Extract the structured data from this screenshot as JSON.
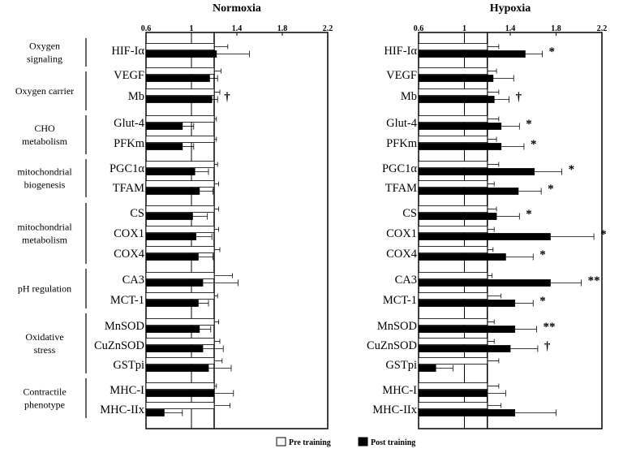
{
  "chart_data": {
    "type": "bar",
    "orientation": "horizontal",
    "xlim": [
      0.6,
      2.2
    ],
    "xticks": [
      "0.6",
      "1",
      "1.4",
      "1.8",
      "2.2"
    ],
    "reference_lines": [
      1.0,
      1.2
    ],
    "legend": {
      "placement": "bottom-center",
      "entries": [
        "Pre training",
        "Post training"
      ]
    },
    "series_colors": {
      "Pre training": "#ffffff",
      "Post training": "#000000"
    },
    "categories": [
      "HIF-Iα",
      "VEGF",
      "Mb",
      "Glut-4",
      "PFKm",
      "PGC1α",
      "TFAM",
      "CS",
      "COX1",
      "COX4",
      "CA3",
      "MCT-1",
      "MnSOD",
      "CuZnSOD",
      "GSTpi",
      "MHC-I",
      "MHC-IIx"
    ],
    "groups": [
      {
        "label": [
          "Oxygen",
          "signaling"
        ],
        "genes": [
          "HIF-Iα"
        ]
      },
      {
        "label": [
          "Oxygen carrier"
        ],
        "genes": [
          "VEGF",
          "Mb"
        ]
      },
      {
        "label": [
          "CHO",
          "metabolism"
        ],
        "genes": [
          "Glut-4",
          "PFKm"
        ]
      },
      {
        "label": [
          "mitochondrial",
          "biogenesis"
        ],
        "genes": [
          "PGC1α",
          "TFAM"
        ]
      },
      {
        "label": [
          "mitochondrial",
          "metabolism"
        ],
        "genes": [
          "CS",
          "COX1",
          "COX4"
        ]
      },
      {
        "label": [
          "pH regulation"
        ],
        "genes": [
          "CA3",
          "MCT-1"
        ]
      },
      {
        "label": [
          "Oxidative",
          "stress"
        ],
        "genes": [
          "MnSOD",
          "CuZnSOD",
          "GSTpi"
        ]
      },
      {
        "label": [
          "Contractile",
          "phenotype"
        ],
        "genes": [
          "MHC-I",
          "MHC-IIx"
        ]
      }
    ],
    "panels": [
      {
        "title": "Normoxia",
        "series": [
          {
            "name": "Pre training",
            "values": [
              1.2,
              1.2,
              1.2,
              1.2,
              1.2,
              1.2,
              1.2,
              1.2,
              1.2,
              1.2,
              1.2,
              1.2,
              1.2,
              1.2,
              1.2,
              1.2,
              1.2
            ],
            "errors": [
              0.12,
              0.06,
              0.05,
              0.02,
              0.02,
              0.03,
              0.04,
              0.04,
              0.04,
              0.05,
              0.16,
              0.03,
              0.04,
              0.05,
              0.07,
              0.02,
              0.14
            ]
          },
          {
            "name": "Post training",
            "values": [
              1.22,
              1.16,
              1.18,
              0.92,
              0.92,
              1.03,
              1.07,
              1.01,
              1.04,
              1.06,
              1.1,
              1.06,
              1.07,
              1.1,
              1.15,
              1.2,
              0.76
            ],
            "errors": [
              0.29,
              0.07,
              0.05,
              0.1,
              0.1,
              0.12,
              0.12,
              0.13,
              0.14,
              0.13,
              0.31,
              0.09,
              0.1,
              0.18,
              0.2,
              0.17,
              0.16
            ]
          }
        ],
        "annotations": [
          "",
          "",
          "†",
          "",
          "",
          "",
          "",
          "",
          "",
          "",
          "",
          "",
          "",
          "",
          "",
          "",
          ""
        ]
      },
      {
        "title": "Hypoxia",
        "series": [
          {
            "name": "Pre training",
            "values": [
              1.2,
              1.2,
              1.2,
              1.2,
              1.2,
              1.2,
              1.2,
              1.2,
              1.2,
              1.2,
              1.2,
              1.2,
              1.2,
              1.2,
              1.2,
              1.2,
              1.2
            ],
            "errors": [
              0.1,
              0.08,
              0.1,
              0.1,
              0.08,
              0.1,
              0.06,
              0.08,
              0.06,
              0.05,
              0.04,
              0.12,
              0.06,
              0.06,
              0.1,
              0.1,
              0.12
            ]
          },
          {
            "name": "Post training",
            "values": [
              1.53,
              1.25,
              1.26,
              1.32,
              1.32,
              1.61,
              1.47,
              1.28,
              1.75,
              1.36,
              1.75,
              1.44,
              1.44,
              1.4,
              0.75,
              1.2,
              1.44
            ],
            "errors": [
              0.15,
              0.18,
              0.13,
              0.16,
              0.2,
              0.24,
              0.2,
              0.2,
              0.38,
              0.24,
              0.27,
              0.16,
              0.19,
              0.24,
              0.15,
              0.16,
              0.36
            ]
          }
        ],
        "annotations": [
          "*",
          "",
          "†",
          "*",
          "*",
          "*",
          "*",
          "*",
          "*",
          "*",
          "**",
          "*",
          "**",
          "†",
          "",
          "",
          ""
        ]
      }
    ]
  }
}
